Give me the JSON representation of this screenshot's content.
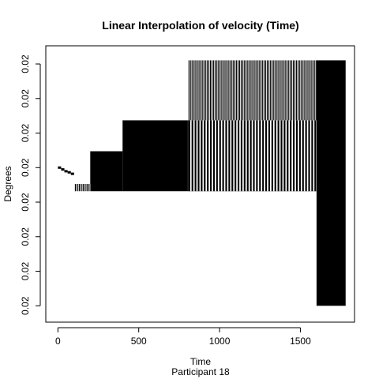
{
  "chart_data": {
    "type": "bar",
    "title": "Linear Interpolation of velocity (Time)",
    "xlabel": "Time",
    "subtitle": "Participant  18",
    "ylabel": "Degrees",
    "xlim": [
      -75,
      1835
    ],
    "ylim": [
      -3.8,
      3.8
    ],
    "x_ticks": [
      {
        "value": 0,
        "label": "0"
      },
      {
        "value": 500,
        "label": "500"
      },
      {
        "value": 1000,
        "label": "1000"
      },
      {
        "value": 1500,
        "label": "1500"
      }
    ],
    "y_ticks": [
      {
        "value": 3.3,
        "label": "0.02"
      },
      {
        "value": 2.35,
        "label": "0.02"
      },
      {
        "value": 1.4,
        "label": "0.02"
      },
      {
        "value": 0.45,
        "label": "0.02"
      },
      {
        "value": -0.5,
        "label": "0.02"
      },
      {
        "value": -1.45,
        "label": "0.02"
      },
      {
        "value": -2.4,
        "label": "0.02"
      },
      {
        "value": -3.35,
        "label": "0.02"
      }
    ],
    "solid_blocks": [
      {
        "x0": 200,
        "x1": 400,
        "y0": -0.2,
        "y1": 0.9
      },
      {
        "x0": 400,
        "x1": 800,
        "y0": -0.2,
        "y1": 1.75
      },
      {
        "x0": 800,
        "x1": 1600,
        "y0": -0.2,
        "y1": 1.75
      },
      {
        "x0": 1600,
        "x1": 1780,
        "y0": -3.35,
        "y1": 3.4
      }
    ],
    "stick_regions": [
      {
        "x0": 808,
        "x1": 1600,
        "step": 9.5,
        "y0": 1.75,
        "y1": 3.4
      },
      {
        "x0": 808,
        "x1": 1600,
        "step": 19,
        "y0": -0.2,
        "y1": 1.75
      },
      {
        "x0": 105,
        "x1": 200,
        "step": 12,
        "y0": -0.2,
        "y1": 0.0
      }
    ],
    "small_segments": [
      {
        "x0": 0,
        "x1": 20,
        "y": 0.45
      },
      {
        "x0": 20,
        "x1": 40,
        "y": 0.4
      },
      {
        "x0": 40,
        "x1": 60,
        "y": 0.35
      },
      {
        "x0": 60,
        "x1": 80,
        "y": 0.32
      },
      {
        "x0": 80,
        "x1": 100,
        "y": 0.28
      }
    ],
    "colors": {
      "bars": "#000000",
      "background": "#ffffff"
    }
  }
}
